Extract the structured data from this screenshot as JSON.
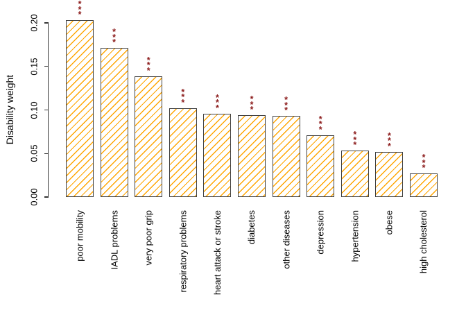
{
  "figure": {
    "background": "#ffffff"
  },
  "chart_data": {
    "type": "bar",
    "title": "",
    "xlabel": "",
    "ylabel": "Disability weight",
    "categories": [
      "poor mobility",
      "IADL problems",
      "very poor grip",
      "respiratory problems",
      "heart attack or stroke",
      "diabetes",
      "other diseases",
      "depression",
      "hypertension",
      "obese",
      "high cholesterol"
    ],
    "values": [
      0.203,
      0.171,
      0.139,
      0.102,
      0.096,
      0.094,
      0.093,
      0.071,
      0.053,
      0.052,
      0.027
    ],
    "significance": [
      "***",
      "***",
      "***",
      "***",
      "***",
      "***",
      "***",
      "***",
      "***",
      "***",
      "***"
    ],
    "yticks": [
      0,
      0.05,
      0.1,
      0.15,
      0.2
    ],
    "ytick_labels": [
      "0.00",
      "0.05",
      "0.10",
      "0.15",
      "0.20"
    ],
    "ylim": [
      0,
      0.2
    ],
    "grid": "off",
    "legend": "none",
    "bar_style": "white fill with 45-degree orange diagonal hatching, dark gray border",
    "colors": {
      "hatch": "#FFA500",
      "bar_border": "#404040",
      "significance": "#8B1A1A",
      "axis": "#333333",
      "text": "#000000"
    }
  }
}
